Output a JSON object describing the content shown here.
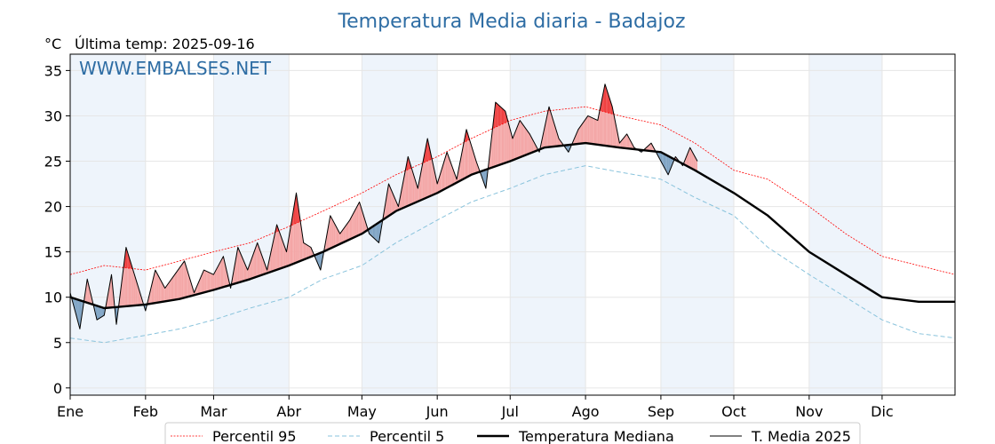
{
  "chart_data": {
    "type": "line",
    "title": "Temperatura Media diaria - Badajoz",
    "unit": "°C",
    "last_temp_label": "Última temp: 2025-09-16",
    "watermark": "WWW.EMBALSES.NET",
    "months": [
      "Ene",
      "Feb",
      "Mar",
      "Abr",
      "May",
      "Jun",
      "Jul",
      "Ago",
      "Sep",
      "Oct",
      "Nov",
      "Dic"
    ],
    "month_start_days": [
      1,
      32,
      60,
      91,
      121,
      152,
      182,
      213,
      244,
      274,
      305,
      335
    ],
    "xlim": [
      1,
      365
    ],
    "ylim": [
      -0.8,
      36.8
    ],
    "yticks": [
      0,
      5,
      10,
      15,
      20,
      25,
      30,
      35
    ],
    "grid": true,
    "legend_position": "bottom-center",
    "colors": {
      "p95": "#ff0000",
      "p5": "#89c3dc",
      "median": "#000000",
      "current": "#000000",
      "above_fill": "#f4a6a6",
      "above_extreme_fill": "#f04040",
      "below_fill": "#7ea3c4",
      "band": "#eef4fb",
      "title": "#2e6da4"
    },
    "series": [
      {
        "name": "Percentil 95",
        "style": "dotted",
        "x": [
          1,
          15,
          32,
          46,
          60,
          75,
          91,
          105,
          121,
          135,
          152,
          166,
          182,
          196,
          213,
          227,
          244,
          258,
          274,
          288,
          305,
          320,
          335,
          350,
          365
        ],
        "values": [
          12.5,
          13.5,
          13.0,
          14.0,
          15.0,
          16.0,
          17.8,
          19.5,
          21.5,
          23.5,
          25.5,
          27.5,
          29.5,
          30.5,
          31.0,
          30.0,
          29.0,
          27.0,
          24.0,
          23.0,
          20.0,
          17.0,
          14.5,
          13.5,
          12.5
        ]
      },
      {
        "name": "Percentil 5",
        "style": "dashed",
        "x": [
          1,
          15,
          32,
          46,
          60,
          75,
          91,
          105,
          121,
          135,
          152,
          166,
          182,
          196,
          213,
          227,
          244,
          258,
          274,
          288,
          305,
          320,
          335,
          350,
          365
        ],
        "values": [
          5.5,
          5.0,
          5.8,
          6.5,
          7.5,
          8.8,
          10.0,
          12.0,
          13.5,
          16.0,
          18.5,
          20.5,
          22.0,
          23.5,
          24.5,
          23.8,
          23.0,
          21.0,
          19.0,
          15.5,
          12.5,
          10.0,
          7.5,
          6.0,
          5.5
        ]
      },
      {
        "name": "Temperatura Mediana",
        "style": "thick",
        "x": [
          1,
          15,
          32,
          46,
          60,
          75,
          91,
          105,
          121,
          135,
          152,
          166,
          182,
          196,
          213,
          227,
          244,
          258,
          274,
          288,
          305,
          320,
          335,
          350,
          365
        ],
        "values": [
          10.0,
          8.8,
          9.2,
          9.8,
          10.8,
          12.0,
          13.5,
          15.0,
          17.0,
          19.5,
          21.5,
          23.5,
          25.0,
          26.5,
          27.0,
          26.5,
          26.0,
          24.0,
          21.5,
          19.0,
          15.0,
          12.5,
          10.0,
          9.5,
          9.5
        ]
      },
      {
        "name": "T. Media 2025",
        "style": "thin",
        "x": [
          1,
          5,
          8,
          12,
          15,
          18,
          20,
          24,
          28,
          32,
          36,
          40,
          44,
          48,
          52,
          56,
          60,
          64,
          67,
          70,
          74,
          78,
          82,
          86,
          90,
          94,
          97,
          100,
          104,
          108,
          112,
          116,
          120,
          124,
          128,
          132,
          136,
          140,
          144,
          148,
          152,
          156,
          160,
          164,
          168,
          172,
          176,
          180,
          183,
          186,
          190,
          194,
          198,
          202,
          206,
          210,
          214,
          218,
          221,
          224,
          227,
          230,
          233,
          236,
          240,
          244,
          247,
          250,
          253,
          256,
          259
        ],
        "values": [
          10.5,
          6.5,
          12.0,
          7.5,
          8.0,
          12.5,
          7.0,
          15.5,
          12.0,
          8.5,
          13.0,
          11.0,
          12.5,
          14.0,
          10.5,
          13.0,
          12.5,
          14.5,
          11.0,
          15.5,
          13.0,
          16.0,
          13.0,
          18.0,
          15.0,
          21.5,
          16.0,
          15.5,
          13.0,
          19.0,
          17.0,
          18.5,
          20.5,
          17.0,
          16.0,
          22.5,
          20.0,
          25.5,
          22.0,
          27.5,
          22.5,
          26.0,
          23.0,
          28.5,
          25.0,
          22.0,
          31.5,
          30.5,
          27.5,
          29.5,
          28.0,
          26.0,
          31.0,
          27.5,
          26.0,
          28.5,
          30.0,
          29.5,
          33.5,
          31.0,
          27.0,
          28.0,
          26.5,
          26.0,
          27.0,
          25.0,
          23.5,
          25.5,
          24.5,
          26.5,
          25.0
        ]
      }
    ]
  }
}
